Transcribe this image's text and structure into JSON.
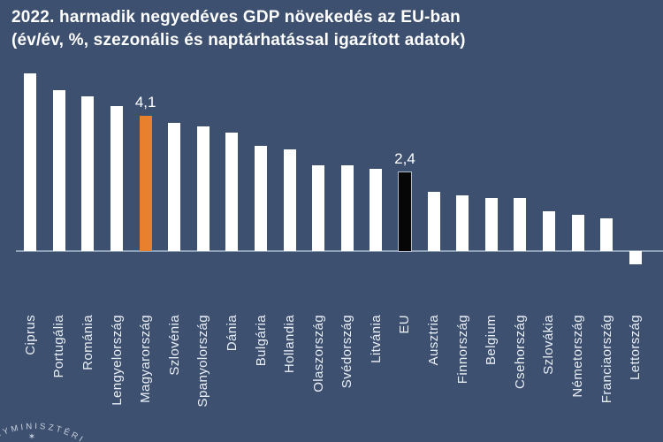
{
  "title": {
    "line1": "2022. harmadik negyedéves GDP növekedés az EU-ban",
    "line2": "(év/év, %, szezonális és naptárhatással igazított adatok)"
  },
  "chart_data": {
    "type": "bar",
    "title": "2022. harmadik negyedéves GDP növekedés az EU-ban",
    "subtitle": "(év/év, %, szezonális és naptárhatással igazított adatok)",
    "unit": "%",
    "categories": [
      "Ciprus",
      "Portugália",
      "Románia",
      "Lengyelország",
      "Magyarország",
      "Szlovénia",
      "Spanyolország",
      "Dánia",
      "Bulgária",
      "Hollandia",
      "Olaszország",
      "Svédország",
      "Litvánia",
      "EU",
      "Ausztria",
      "Finnország",
      "Belgium",
      "Csehország",
      "Szlovákia",
      "Németország",
      "Franciaország",
      "Lettország"
    ],
    "values": [
      5.4,
      4.9,
      4.7,
      4.4,
      4.1,
      3.9,
      3.8,
      3.6,
      3.2,
      3.1,
      2.6,
      2.6,
      2.5,
      2.4,
      1.8,
      1.7,
      1.6,
      1.6,
      1.2,
      1.1,
      1.0,
      -0.4
    ],
    "data_labels": {
      "Magyarország": "4,1",
      "EU": "2,4"
    },
    "bar_default_color": "#FFFFFF",
    "point_colors": {
      "Magyarország": "#E8802D",
      "EU": "#060606"
    },
    "point_outlines": {
      "EU": "#AFBBCB"
    },
    "ylim": [
      -0.6,
      5.6
    ],
    "grid": false,
    "legend": false,
    "axis_line_color": "#8E9EB4",
    "background_color": "#3D5070",
    "value_text_color": "#FFFFFF",
    "category_text_color": "#E9EEF5"
  },
  "logo": {
    "arc_text": "ÜGYMINISZTÉRI",
    "star_icon": "✶",
    "color": "#C9D2DE"
  }
}
